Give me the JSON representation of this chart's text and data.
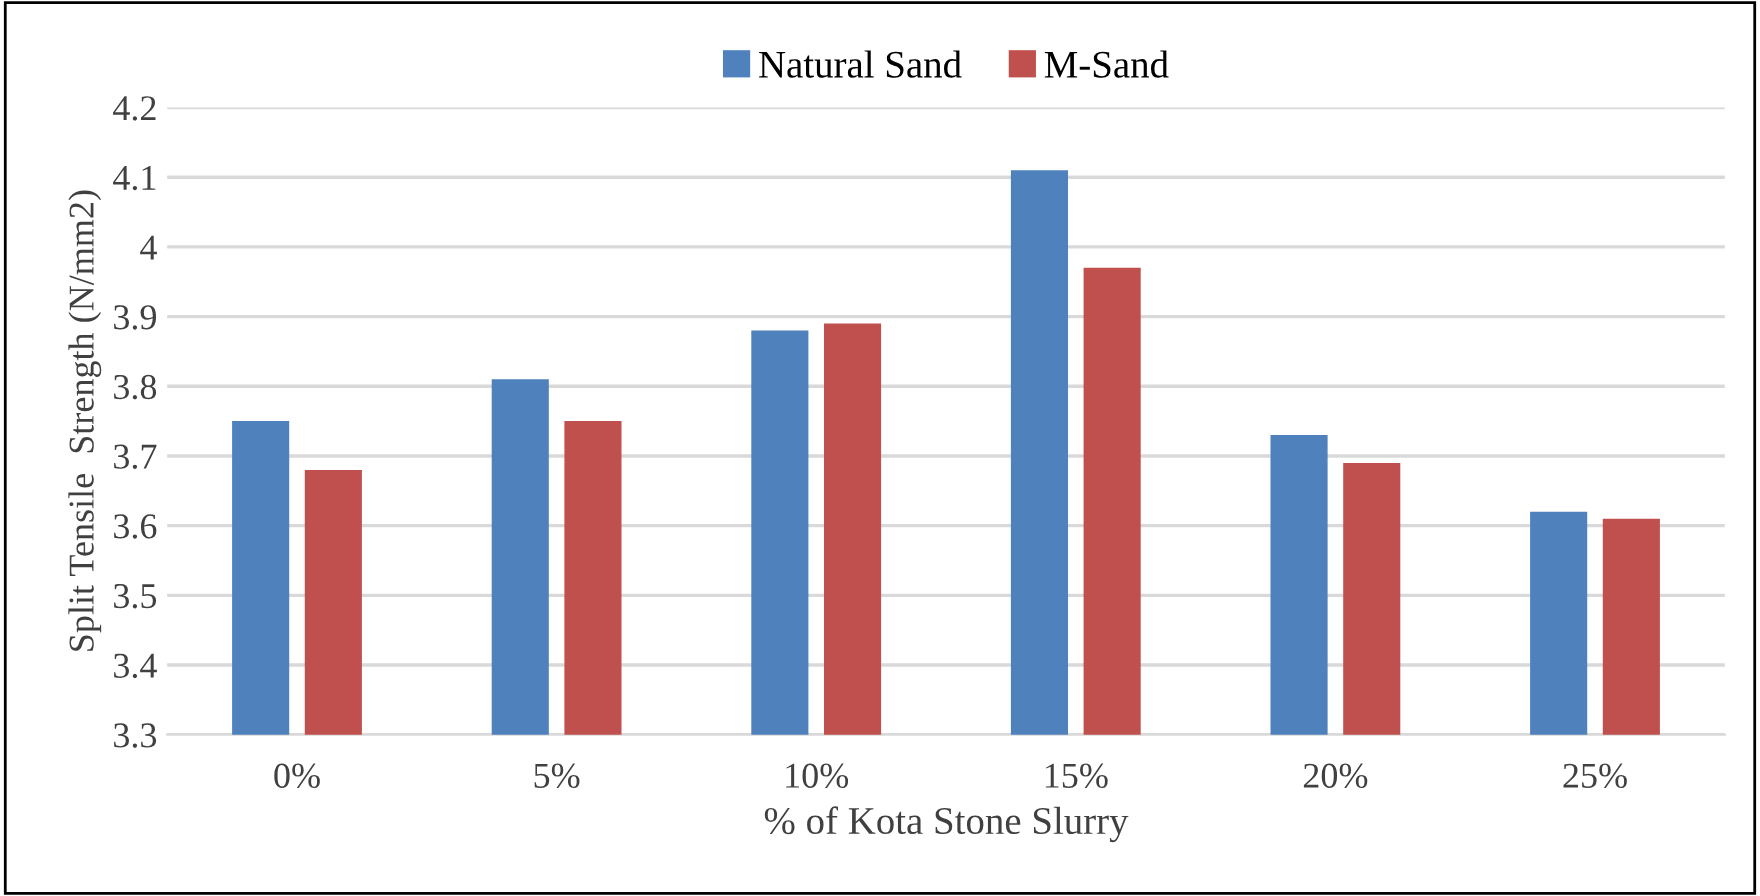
{
  "chart_data": {
    "type": "bar",
    "xlabel": "% of Kota Stone Slurry",
    "ylabel": "Split Tensile  Strength (N/mm2)",
    "categories": [
      "0%",
      "5%",
      "10%",
      "15%",
      "20%",
      "25%"
    ],
    "series": [
      {
        "name": "Natural Sand",
        "color": "#4f81bd",
        "values": [
          3.75,
          3.81,
          3.88,
          4.11,
          3.73,
          3.62
        ]
      },
      {
        "name": "M-Sand",
        "color": "#c0504d",
        "values": [
          3.68,
          3.75,
          3.89,
          3.97,
          3.69,
          3.61
        ]
      }
    ],
    "ylim": [
      3.3,
      4.2
    ],
    "yticks": [
      3.3,
      3.4,
      3.5,
      3.6,
      3.7,
      3.8,
      3.9,
      4,
      4.1,
      4.2
    ],
    "grid": "y",
    "legend": "top"
  }
}
